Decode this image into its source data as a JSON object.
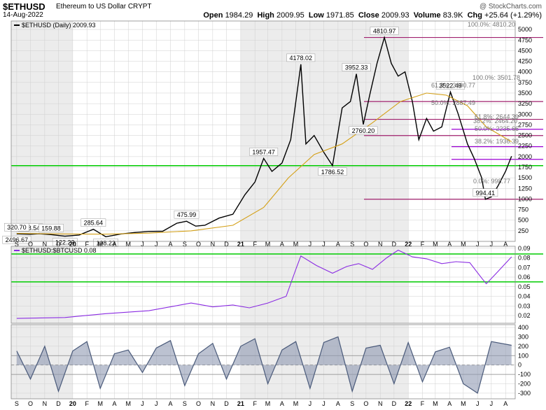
{
  "header": {
    "symbol": "$ETHUSD",
    "name": "Ethereum to US Dollar",
    "exchange": "CRYPT",
    "date": "14-Aug-2022",
    "credit": "@ StockCharts.com",
    "open_label": "Open",
    "open": "1984.29",
    "high_label": "High",
    "high": "2009.95",
    "low_label": "Low",
    "low": "1971.85",
    "close_label": "Close",
    "close": "2009.93",
    "volume_label": "Volume",
    "volume": "83.9K",
    "chg_label": "Chg",
    "chg": "+25.64 (+1.29%)"
  },
  "chart_data": [
    {
      "type": "line",
      "panel": "price",
      "legend": "$ETHUSD (Daily) 2009.93",
      "series": [
        {
          "name": "$ETHUSD (Daily) 2009.93",
          "color": "#000000",
          "x": [
            "2019-09-01",
            "2019-10-01",
            "2019-10-20",
            "2019-11-15",
            "2019-12-15",
            "2020-01-15",
            "2020-02-15",
            "2020-03-13",
            "2020-04-15",
            "2020-05-15",
            "2020-06-15",
            "2020-07-15",
            "2020-08-15",
            "2020-09-05",
            "2020-09-25",
            "2020-10-15",
            "2020-11-15",
            "2020-12-15",
            "2021-01-10",
            "2021-02-01",
            "2021-02-20",
            "2021-03-10",
            "2021-04-01",
            "2021-04-20",
            "2021-05-12",
            "2021-05-23",
            "2021-06-10",
            "2021-07-01",
            "2021-07-20",
            "2021-08-10",
            "2021-08-28",
            "2021-09-10",
            "2021-09-25",
            "2021-10-10",
            "2021-10-25",
            "2021-11-10",
            "2021-11-25",
            "2021-12-10",
            "2021-12-25",
            "2022-01-10",
            "2022-01-24",
            "2022-02-10",
            "2022-02-25",
            "2022-03-15",
            "2022-04-03",
            "2022-04-20",
            "2022-05-10",
            "2022-05-25",
            "2022-06-10",
            "2022-06-18",
            "2022-07-01",
            "2022-07-15",
            "2022-08-01",
            "2022-08-14"
          ],
          "y": [
            178,
            168.54,
            180,
            159.88,
            122.23,
            150,
            285.64,
            108.23,
            175,
            210,
            235,
            240,
            430,
            475.99,
            360,
            380,
            550,
            640,
            1100,
            1400,
            1957.47,
            1650,
            1850,
            2400,
            4178.02,
            2300,
            2500,
            2100,
            1786.52,
            3150,
            3300,
            3952.33,
            2760.2,
            3500,
            4200,
            4810.97,
            4200,
            3900,
            4000,
            3300,
            2400,
            2900,
            2600,
            2700,
            3522.49,
            3000,
            2300,
            1950,
            1500,
            994.41,
            1050,
            1300,
            1650,
            2009.93
          ]
        },
        {
          "name": "MA",
          "color": "#d4a017",
          "x": [
            "2019-09-01",
            "2019-12-15",
            "2020-03-13",
            "2020-06-15",
            "2020-09-15",
            "2020-12-15",
            "2021-02-20",
            "2021-04-15",
            "2021-06-10",
            "2021-08-10",
            "2021-10-15",
            "2021-12-15",
            "2022-02-10",
            "2022-03-25",
            "2022-05-10",
            "2022-06-20",
            "2022-08-14"
          ],
          "y": [
            190,
            175,
            170,
            195,
            250,
            380,
            800,
            1500,
            2050,
            2300,
            2800,
            3300,
            3500,
            3450,
            3200,
            2700,
            2350
          ]
        }
      ],
      "yticks": [
        "250",
        "500",
        "750",
        "1000",
        "1250",
        "1500",
        "1750",
        "2000",
        "2250",
        "2500",
        "2750",
        "3000",
        "3250",
        "3500",
        "3750",
        "4000",
        "4250",
        "4500",
        "4750",
        "5000"
      ],
      "ylim": [
        0,
        5200
      ],
      "xticks": [
        "S",
        "O",
        "N",
        "D",
        "20",
        "F",
        "M",
        "A",
        "M",
        "J",
        "J",
        "A",
        "S",
        "O",
        "N",
        "D",
        "21",
        "F",
        "M",
        "A",
        "M",
        "J",
        "J",
        "A",
        "S",
        "O",
        "N",
        "D",
        "22",
        "F",
        "M",
        "A",
        "M",
        "J",
        "J",
        "A"
      ],
      "annotations": [
        "168.54",
        "159.88",
        "191.25",
        "122.23",
        "285.64",
        "108.23",
        "475.99",
        "320.70",
        "1957.47",
        "4178.02",
        "1786.52",
        "3952.33",
        "2760.20",
        "4810.97",
        "2496.67",
        "3522.49",
        "994.41"
      ],
      "horizontal_lines": [
        {
          "value": 4810.97,
          "color": "#a0206e"
        },
        {
          "value": 3300,
          "color": "#a0206e"
        },
        {
          "value": 2880,
          "color": "#a0206e"
        },
        {
          "value": 2496.67,
          "color": "#a0206e"
        },
        {
          "value": 1786.52,
          "color": "#00cc00"
        },
        {
          "value": 994.41,
          "color": "#a0206e"
        },
        {
          "value": 2645,
          "color": "#9b00d4"
        },
        {
          "value": 2235,
          "color": "#9b00d4"
        },
        {
          "value": 1936,
          "color": "#9b00d4"
        }
      ],
      "fib_labels": [
        "100.0%: 4810.20",
        "61.8%: 3300.77",
        "50.0%: 2887.49",
        "100.0%: 3501.78",
        "38.2%: 2464.20",
        "61.8%: 2644.39",
        "50.0%: 2235.66",
        "38.2%: 1936.39",
        "0.0%: 998.77"
      ]
    },
    {
      "type": "line",
      "panel": "ratio",
      "legend": "$ETHUSD:$BTCUSD 0.08",
      "series": [
        {
          "name": "$ETHUSD:$BTCUSD 0.08",
          "color": "#8a2be2",
          "x": [
            "2019-09-01",
            "2019-12-15",
            "2020-03-13",
            "2020-06-15",
            "2020-09-15",
            "2020-11-01",
            "2020-12-15",
            "2021-01-20",
            "2021-03-01",
            "2021-04-10",
            "2021-05-01",
            "2021-05-12",
            "2021-06-15",
            "2021-07-20",
            "2021-08-20",
            "2021-09-15",
            "2021-10-15",
            "2021-11-15",
            "2021-12-10",
            "2022-01-10",
            "2022-02-10",
            "2022-03-15",
            "2022-04-15",
            "2022-05-15",
            "2022-06-10",
            "2022-06-20",
            "2022-07-10",
            "2022-08-14"
          ],
          "y": [
            0.017,
            0.018,
            0.022,
            0.025,
            0.033,
            0.029,
            0.031,
            0.028,
            0.033,
            0.04,
            0.068,
            0.082,
            0.072,
            0.064,
            0.071,
            0.074,
            0.068,
            0.08,
            0.088,
            0.081,
            0.079,
            0.074,
            0.076,
            0.075,
            0.059,
            0.053,
            0.063,
            0.081
          ]
        }
      ],
      "yticks": [
        "0.02",
        "0.03",
        "0.04",
        "0.05",
        "0.06",
        "0.07",
        "0.08",
        "0.09"
      ],
      "ylim": [
        0.012,
        0.092
      ],
      "horizontal_lines": [
        {
          "value": 0.084,
          "color": "#00cc00"
        },
        {
          "value": 0.055,
          "color": "#00cc00"
        }
      ]
    },
    {
      "type": "area",
      "panel": "oscillator",
      "series": [
        {
          "name": "",
          "color": "#4a5a7a",
          "x": [
            "2019-09-01",
            "2019-10-01",
            "2019-11-01",
            "2019-12-01",
            "2020-01-01",
            "2020-02-01",
            "2020-03-01",
            "2020-04-01",
            "2020-05-01",
            "2020-06-01",
            "2020-07-01",
            "2020-08-01",
            "2020-09-01",
            "2020-10-01",
            "2020-11-01",
            "2020-12-01",
            "2021-01-01",
            "2021-02-01",
            "2021-03-01",
            "2021-04-01",
            "2021-05-01",
            "2021-06-01",
            "2021-07-01",
            "2021-08-01",
            "2021-09-01",
            "2021-10-01",
            "2021-11-01",
            "2021-12-01",
            "2022-01-01",
            "2022-02-01",
            "2022-03-01",
            "2022-04-01",
            "2022-05-01",
            "2022-06-01",
            "2022-07-01",
            "2022-08-14"
          ],
          "y": [
            150,
            -150,
            200,
            -280,
            150,
            250,
            -250,
            120,
            160,
            -80,
            180,
            260,
            -220,
            120,
            230,
            -150,
            200,
            280,
            -200,
            160,
            250,
            -250,
            240,
            300,
            -280,
            180,
            210,
            -200,
            240,
            -180,
            140,
            190,
            -200,
            -300,
            250,
            210
          ]
        }
      ],
      "yticks": [
        "-300",
        "-200",
        "-100",
        "0",
        "100",
        "200",
        "300",
        "400"
      ],
      "ylim": [
        -360,
        430
      ],
      "reference_lines": [
        100,
        0,
        -100
      ]
    }
  ]
}
